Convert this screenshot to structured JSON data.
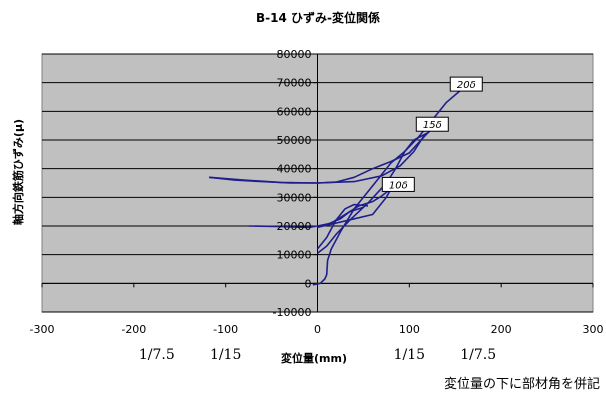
{
  "chart_data": {
    "type": "line",
    "title": "B-14 ひずみ-変位関係",
    "xlabel": "変位量(mm)",
    "ylabel": "軸方向鉄筋ひずみ(μ)",
    "xlim": [
      -300,
      300
    ],
    "ylim": [
      -10000,
      80000
    ],
    "xticks": [
      -300,
      -200,
      -100,
      0,
      100,
      200,
      300
    ],
    "yticks": [
      -10000,
      0,
      10000,
      20000,
      30000,
      40000,
      50000,
      60000,
      70000,
      80000
    ],
    "grid": true,
    "plot_background": "#c0c0c0",
    "line_color": "#1f1f8c",
    "rotation_labels": [
      {
        "x": -175,
        "text": "1/7.5"
      },
      {
        "x": -100,
        "text": "1/15"
      },
      {
        "x": 100,
        "text": "1/15"
      },
      {
        "x": 175,
        "text": "1/7.5"
      }
    ],
    "annotations": [
      {
        "text": "20δ",
        "x": 162,
        "y": 69500
      },
      {
        "text": "15δ",
        "x": 125,
        "y": 55500
      },
      {
        "text": "10δ",
        "x": 88,
        "y": 34500
      }
    ],
    "note": "変位量の下に部材角を併記",
    "series": [
      {
        "values": [
          [
            -5,
            -500
          ],
          [
            3,
            0
          ],
          [
            8,
            1500
          ],
          [
            10,
            3000
          ],
          [
            11,
            8000
          ],
          [
            15,
            12000
          ],
          [
            25,
            18000
          ],
          [
            40,
            26000
          ],
          [
            60,
            34000
          ],
          [
            80,
            42000
          ],
          [
            95,
            46000
          ],
          [
            110,
            51000
          ],
          [
            125,
            57000
          ],
          [
            140,
            63000
          ],
          [
            160,
            68500
          ]
        ]
      },
      {
        "values": [
          [
            0,
            10500
          ],
          [
            10,
            13000
          ],
          [
            20,
            17000
          ],
          [
            35,
            22000
          ],
          [
            55,
            28000
          ],
          [
            75,
            35000
          ],
          [
            85,
            40000
          ],
          [
            95,
            46000
          ],
          [
            105,
            50000
          ],
          [
            120,
            52500
          ]
        ]
      },
      {
        "values": [
          [
            -118,
            37000
          ],
          [
            -90,
            36000
          ],
          [
            -60,
            35500
          ],
          [
            -30,
            35000
          ],
          [
            0,
            35000
          ],
          [
            20,
            35300
          ],
          [
            40,
            37000
          ],
          [
            60,
            40000
          ],
          [
            80,
            42500
          ],
          [
            100,
            45500
          ],
          [
            120,
            52500
          ]
        ]
      },
      {
        "values": [
          [
            -118,
            37000
          ],
          [
            -80,
            36000
          ],
          [
            -40,
            35200
          ],
          [
            0,
            35000
          ],
          [
            40,
            35500
          ],
          [
            70,
            37500
          ],
          [
            90,
            41000
          ],
          [
            105,
            46000
          ],
          [
            115,
            51000
          ],
          [
            122,
            53000
          ]
        ]
      },
      {
        "values": [
          [
            -75,
            20000
          ],
          [
            -40,
            19800
          ],
          [
            -10,
            19500
          ],
          [
            0,
            20000
          ],
          [
            15,
            21000
          ],
          [
            30,
            24000
          ],
          [
            45,
            27000
          ],
          [
            60,
            28500
          ],
          [
            70,
            30500
          ],
          [
            80,
            33000
          ]
        ]
      },
      {
        "values": [
          [
            0,
            19500
          ],
          [
            20,
            21000
          ],
          [
            40,
            22500
          ],
          [
            60,
            24000
          ],
          [
            75,
            30000
          ],
          [
            80,
            33000
          ]
        ]
      },
      {
        "values": [
          [
            0,
            12000
          ],
          [
            10,
            16000
          ],
          [
            20,
            22000
          ],
          [
            30,
            26000
          ],
          [
            40,
            27500
          ],
          [
            55,
            27000
          ]
        ]
      },
      {
        "values": [
          [
            0,
            19800
          ],
          [
            10,
            20500
          ],
          [
            25,
            22500
          ],
          [
            35,
            25000
          ],
          [
            50,
            26500
          ]
        ]
      }
    ]
  }
}
